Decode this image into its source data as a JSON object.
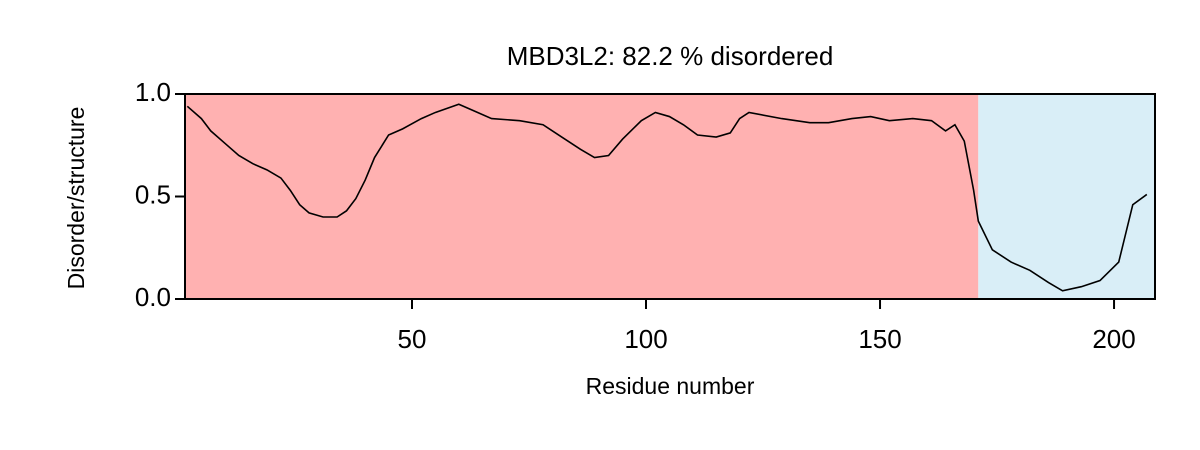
{
  "chart_data": {
    "type": "line",
    "title": "MBD3L2: 82.2 % disordered",
    "xlabel": "Residue number",
    "ylabel": "Disorder/structure",
    "xlim": [
      1.5,
      208.75
    ],
    "ylim": [
      0,
      1
    ],
    "xticks": [
      50,
      100,
      150,
      200
    ],
    "yticks": [
      {
        "value": 0,
        "label": "0.0"
      },
      {
        "value": 0.5,
        "label": "0.5"
      },
      {
        "value": 1,
        "label": "1.0"
      }
    ],
    "regions": [
      {
        "start": 1.5,
        "end": 171,
        "color": "#ffb1b1"
      },
      {
        "start": 171,
        "end": 208.75,
        "color": "#d9eef7"
      }
    ],
    "series": [
      {
        "color": "#000000",
        "x": [
          2,
          5,
          7,
          10,
          13,
          16,
          19,
          22,
          24,
          26,
          28,
          31,
          34,
          36,
          38,
          40,
          42,
          45,
          48,
          52,
          55,
          60,
          63,
          67,
          73,
          78,
          82,
          86,
          89,
          92,
          95,
          99,
          102,
          105,
          108,
          111,
          115,
          118,
          120,
          122,
          129,
          135,
          139,
          144,
          148,
          152,
          157,
          161,
          164,
          166,
          168,
          170,
          171,
          174,
          178,
          182,
          186,
          189,
          193,
          197,
          201,
          204,
          207
        ],
        "values": [
          0.94,
          0.88,
          0.82,
          0.76,
          0.7,
          0.66,
          0.63,
          0.59,
          0.53,
          0.46,
          0.42,
          0.4,
          0.4,
          0.43,
          0.49,
          0.58,
          0.69,
          0.8,
          0.83,
          0.88,
          0.91,
          0.95,
          0.92,
          0.88,
          0.87,
          0.85,
          0.79,
          0.73,
          0.69,
          0.7,
          0.78,
          0.87,
          0.91,
          0.89,
          0.85,
          0.8,
          0.79,
          0.81,
          0.88,
          0.91,
          0.88,
          0.86,
          0.86,
          0.88,
          0.89,
          0.87,
          0.88,
          0.87,
          0.82,
          0.85,
          0.77,
          0.53,
          0.38,
          0.24,
          0.18,
          0.14,
          0.08,
          0.04,
          0.06,
          0.09,
          0.18,
          0.46,
          0.51
        ]
      }
    ]
  }
}
